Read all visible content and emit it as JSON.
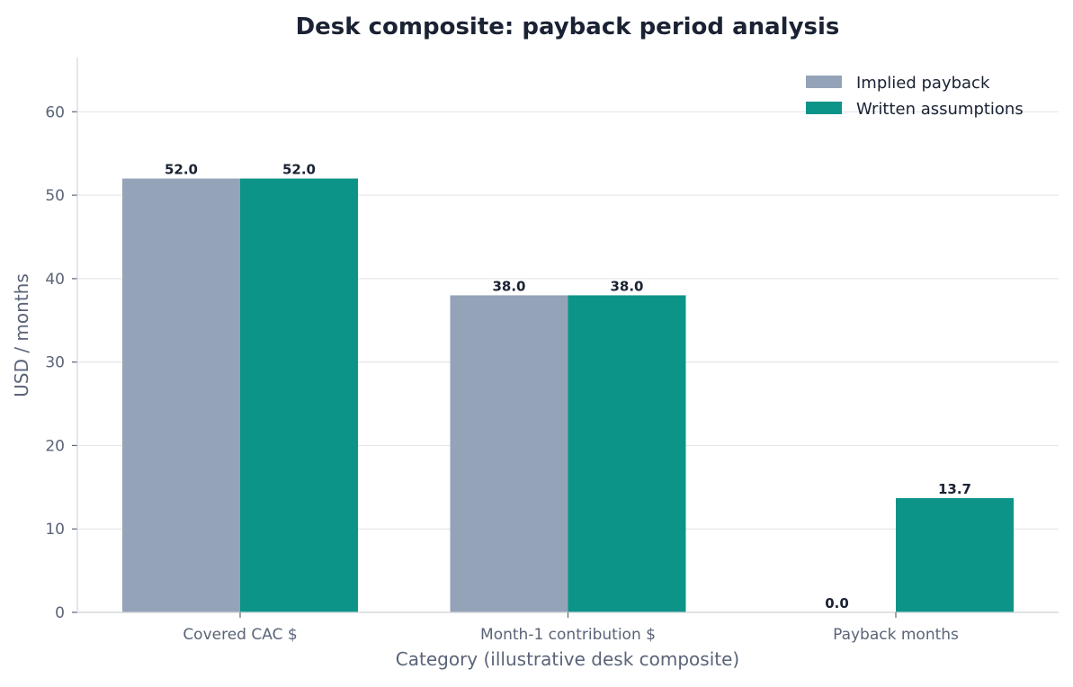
{
  "chart_data": {
    "type": "bar",
    "title": "Desk composite: payback period analysis",
    "xlabel": "Category (illustrative desk composite)",
    "ylabel": "USD / months",
    "categories": [
      "Covered CAC $",
      "Month-1 contribution $",
      "Payback months"
    ],
    "series": [
      {
        "name": "Implied payback",
        "values": [
          52.0,
          38.0,
          0.0
        ],
        "labels": [
          "52.0",
          "38.0",
          "0.0"
        ],
        "color": "#94a3b8"
      },
      {
        "name": "Written assumptions",
        "values": [
          52.0,
          38.0,
          13.7
        ],
        "labels": [
          "52.0",
          "38.0",
          "13.7"
        ],
        "color": "#0d9488"
      }
    ],
    "ylim": [
      0,
      66.5
    ],
    "yticks": [
      0,
      10,
      20,
      30,
      40,
      50,
      60
    ],
    "grid": "horizontal",
    "legend_position": "top-right"
  },
  "colors": {
    "grid": "#e5e7eb",
    "axis": "#d1d5db"
  }
}
